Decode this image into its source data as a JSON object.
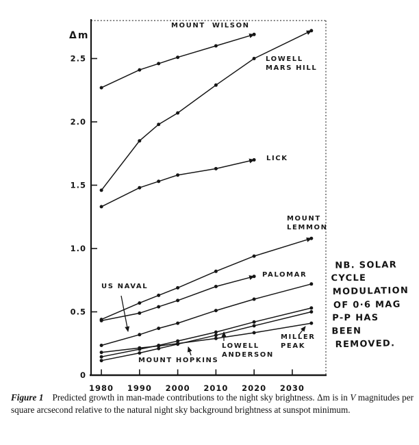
{
  "figure": {
    "note_lines": [
      "NB. SOLAR",
      "CYCLE",
      "MODULATION",
      "OF 0·6 MAG",
      "P-P HAS",
      "BEEN",
      "REMOVED."
    ],
    "caption": {
      "label": "Figure 1",
      "body_1": "Predicted growth in man-made contributions to the night sky brightness. Δm is in ",
      "italic_v": "V",
      "body_2": " magnitudes per square arcsecond relative to the natural night sky background brightness at sunspot minimum."
    }
  },
  "chart_data": {
    "type": "line",
    "title": "",
    "xlabel": "",
    "ylabel": "Δm",
    "grid": false,
    "legend": "inline-labels",
    "line_color": "#161616",
    "x_ticks": [
      "1980",
      "1990",
      "2000",
      "2010",
      "2020",
      "2030"
    ],
    "x_tick_values": [
      1980,
      1990,
      2000,
      2010,
      2020,
      2030
    ],
    "y_ticks": [
      "0",
      "0.5",
      "1.0",
      "1.5",
      "2.0",
      "2.5"
    ],
    "y_tick_values": [
      0,
      0.5,
      1.0,
      1.5,
      2.0,
      2.5
    ],
    "x_range": [
      1977.3,
      2038.8
    ],
    "y_range": [
      0,
      2.8
    ],
    "annotation_note": "NB. SOLAR CYCLE MODULATION OF 0·6 MAG P-P HAS BEEN REMOVED.",
    "series": [
      {
        "name": "Mount Wilson",
        "label_lines": [
          "MOUNT WILSON"
        ],
        "arrow_end": true,
        "points": [
          [
            1980,
            2.27
          ],
          [
            1990,
            2.41
          ],
          [
            1995,
            2.46
          ],
          [
            2000,
            2.51
          ],
          [
            2010,
            2.6
          ],
          [
            2020,
            2.69
          ]
        ]
      },
      {
        "name": "Lowell Mars Hill",
        "label_lines": [
          "LOWELL",
          "MARS HILL"
        ],
        "arrow_end": true,
        "points": [
          [
            1980,
            1.46
          ],
          [
            1990,
            1.85
          ],
          [
            1995,
            1.98
          ],
          [
            2000,
            2.07
          ],
          [
            2010,
            2.29
          ],
          [
            2020,
            2.5
          ],
          [
            2035,
            2.72
          ]
        ]
      },
      {
        "name": "Lick",
        "label_lines": [
          "LICK"
        ],
        "arrow_end": true,
        "points": [
          [
            1980,
            1.33
          ],
          [
            1990,
            1.48
          ],
          [
            1995,
            1.53
          ],
          [
            2000,
            1.58
          ],
          [
            2010,
            1.63
          ],
          [
            2020,
            1.7
          ]
        ]
      },
      {
        "name": "Mount Lemmon",
        "label_lines": [
          "MOUNT",
          "LEMMON"
        ],
        "arrow_end": true,
        "points": [
          [
            1980,
            0.44
          ],
          [
            1990,
            0.57
          ],
          [
            1995,
            0.63
          ],
          [
            2000,
            0.69
          ],
          [
            2010,
            0.82
          ],
          [
            2020,
            0.94
          ],
          [
            2035,
            1.08
          ]
        ]
      },
      {
        "name": "Palomar",
        "label_lines": [
          "PALOMAR"
        ],
        "arrow_end": true,
        "points": [
          [
            1980,
            0.43
          ],
          [
            1990,
            0.49
          ],
          [
            1995,
            0.54
          ],
          [
            2000,
            0.59
          ],
          [
            2010,
            0.7
          ],
          [
            2020,
            0.78
          ]
        ]
      },
      {
        "name": "US Naval",
        "label_lines": [
          "US NAVAL"
        ],
        "arrow_end": false,
        "points": [
          [
            1980,
            0.235
          ],
          [
            1990,
            0.32
          ],
          [
            1995,
            0.37
          ],
          [
            2000,
            0.41
          ],
          [
            2010,
            0.51
          ],
          [
            2020,
            0.6
          ],
          [
            2035,
            0.72
          ]
        ]
      },
      {
        "name": "Mount Hopkins",
        "label_lines": [
          "MOUNT HOPKINS"
        ],
        "arrow_end": false,
        "points": [
          [
            1980,
            0.145
          ],
          [
            1990,
            0.205
          ],
          [
            1995,
            0.235
          ],
          [
            2000,
            0.27
          ],
          [
            2010,
            0.34
          ],
          [
            2020,
            0.42
          ],
          [
            2035,
            0.53
          ]
        ]
      },
      {
        "name": "Lowell Anderson",
        "label_lines": [
          "LOWELL",
          "ANDERSON"
        ],
        "arrow_end": false,
        "points": [
          [
            1980,
            0.115
          ],
          [
            1990,
            0.175
          ],
          [
            1995,
            0.21
          ],
          [
            2000,
            0.245
          ],
          [
            2010,
            0.315
          ],
          [
            2020,
            0.39
          ],
          [
            2035,
            0.5
          ]
        ]
      },
      {
        "name": "Miller Peak",
        "label_lines": [
          "MILLER",
          "PEAK"
        ],
        "arrow_end": false,
        "points": [
          [
            1980,
            0.18
          ],
          [
            1990,
            0.215
          ],
          [
            1995,
            0.23
          ],
          [
            2000,
            0.25
          ],
          [
            2010,
            0.29
          ],
          [
            2020,
            0.335
          ],
          [
            2035,
            0.41
          ]
        ]
      }
    ]
  }
}
